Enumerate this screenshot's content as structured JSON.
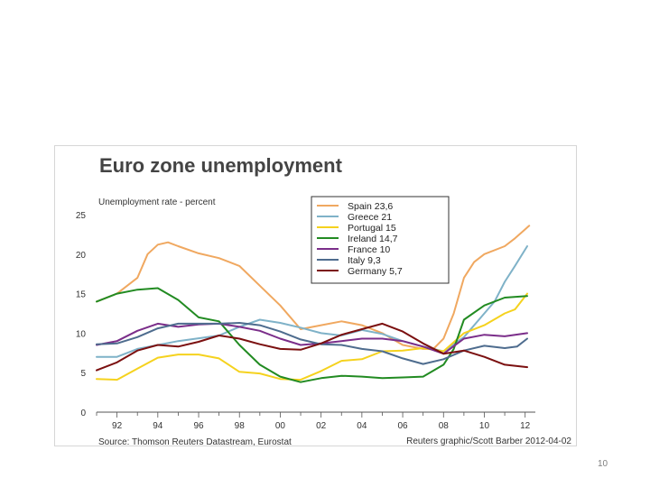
{
  "page_number": "10",
  "chart_data": {
    "type": "line",
    "title": "Euro zone unemployment",
    "ylabel": "Unemployment rate - percent",
    "xlabel": "",
    "source": "Source: Thomson Reuters Datastream, Eurostat",
    "credit": "Reuters graphic/Scott Barber 2012-04-02",
    "xlim": [
      1991,
      2012.5
    ],
    "ylim": [
      0,
      25
    ],
    "x_ticks": [
      1992,
      1994,
      1996,
      1998,
      2000,
      2002,
      2004,
      2006,
      2008,
      2010,
      2012
    ],
    "x_tick_labels": [
      "92",
      "94",
      "96",
      "98",
      "00",
      "02",
      "04",
      "06",
      "08",
      "10",
      "12"
    ],
    "y_ticks": [
      0,
      5,
      10,
      15,
      20,
      25
    ],
    "y_tick_labels": [
      "0",
      "5",
      "10",
      "15",
      "20",
      "25"
    ],
    "grid": false,
    "legend_position": "top-right",
    "series": [
      {
        "name": "Spain",
        "last": "23,6",
        "color": "#f0a860",
        "x": [
          1991,
          1992,
          1993,
          1993.5,
          1994,
          1994.5,
          1995,
          1996,
          1997,
          1998,
          1999,
          2000,
          2001,
          2002,
          2003,
          2004,
          2005,
          2006,
          2007,
          2007.5,
          2008,
          2008.5,
          2009,
          2009.5,
          2010,
          2011,
          2011.5,
          2012.2
        ],
        "y": [
          14,
          15,
          17,
          20,
          21.2,
          21.5,
          21,
          20.1,
          19.5,
          18.5,
          16,
          13.5,
          10.5,
          11,
          11.5,
          11,
          10,
          8.5,
          8,
          8,
          9.3,
          12.5,
          17,
          19,
          20,
          21,
          22,
          23.6
        ]
      },
      {
        "name": "Greece",
        "last": "21",
        "color": "#7fb2c8",
        "x": [
          1991,
          1992,
          1993,
          1995,
          1997,
          1998,
          1999,
          2000,
          2001,
          2002,
          2003,
          2004,
          2005,
          2006,
          2007,
          2008,
          2009,
          2010,
          2010.5,
          2011,
          2011.5,
          2012.1
        ],
        "y": [
          7,
          7,
          8,
          9,
          9.7,
          10.8,
          11.7,
          11.3,
          10.7,
          10,
          9.7,
          10.4,
          9.9,
          9,
          8.3,
          7.7,
          9.5,
          12.5,
          14,
          16.5,
          18.5,
          21
        ]
      },
      {
        "name": "Portugal",
        "last": "15",
        "color": "#f5d21e",
        "x": [
          1991,
          1992,
          1993,
          1994,
          1995,
          1996,
          1997,
          1998,
          1999,
          2000,
          2001,
          2002,
          2003,
          2004,
          2005,
          2006,
          2007,
          2008,
          2009,
          2010,
          2011,
          2011.5,
          2012.1
        ],
        "y": [
          4.2,
          4.1,
          5.5,
          6.9,
          7.3,
          7.3,
          6.8,
          5.1,
          4.9,
          4.2,
          4.1,
          5.2,
          6.5,
          6.7,
          7.7,
          7.8,
          8.1,
          7.7,
          10,
          11,
          12.5,
          13,
          15
        ]
      },
      {
        "name": "Ireland",
        "last": "14,7",
        "color": "#228b22",
        "x": [
          1991,
          1992,
          1993,
          1994,
          1995,
          1996,
          1997,
          1998,
          1999,
          2000,
          2001,
          2002,
          2003,
          2004,
          2005,
          2006,
          2007,
          2008,
          2008.5,
          2009,
          2010,
          2011,
          2012.1
        ],
        "y": [
          14,
          15,
          15.5,
          15.7,
          14.2,
          12,
          11.5,
          8.5,
          6,
          4.5,
          3.8,
          4.3,
          4.6,
          4.5,
          4.3,
          4.4,
          4.5,
          6,
          8,
          11.7,
          13.5,
          14.5,
          14.7
        ]
      },
      {
        "name": "France",
        "last": "10",
        "color": "#7b2e8a",
        "x": [
          1991,
          1992,
          1993,
          1994,
          1995,
          1996,
          1997,
          1998,
          1999,
          2000,
          2001,
          2002,
          2003,
          2004,
          2005,
          2006,
          2007,
          2008,
          2009,
          2010,
          2011,
          2012.1
        ],
        "y": [
          8.5,
          9,
          10.3,
          11.2,
          10.8,
          11.1,
          11.2,
          10.8,
          10.3,
          9.3,
          8.5,
          8.7,
          9,
          9.3,
          9.3,
          9,
          8.3,
          7.4,
          9.3,
          9.8,
          9.6,
          10
        ]
      },
      {
        "name": "Italy",
        "last": "9,3",
        "color": "#4e6c8e",
        "x": [
          1991,
          1992,
          1993,
          1994,
          1995,
          1996,
          1997,
          1998,
          1999,
          2000,
          2001,
          2002,
          2003,
          2004,
          2005,
          2006,
          2007,
          2008,
          2009,
          2010,
          2011,
          2011.6,
          2012.1
        ],
        "y": [
          8.6,
          8.7,
          9.5,
          10.6,
          11.2,
          11.2,
          11.2,
          11.3,
          11,
          10.2,
          9.2,
          8.6,
          8.5,
          8,
          7.7,
          6.8,
          6.1,
          6.7,
          7.8,
          8.4,
          8.1,
          8.3,
          9.3
        ]
      },
      {
        "name": "Germany",
        "last": "5,7",
        "color": "#7b1010",
        "x": [
          1991,
          1992,
          1993,
          1994,
          1995,
          1996,
          1997,
          1998,
          1999,
          2000,
          2001,
          2002,
          2003,
          2004,
          2005,
          2006,
          2007,
          2008,
          2009,
          2010,
          2011,
          2012.1
        ],
        "y": [
          5.3,
          6.3,
          7.8,
          8.5,
          8.3,
          8.9,
          9.7,
          9.3,
          8.6,
          8,
          7.9,
          8.7,
          9.8,
          10.5,
          11.2,
          10.2,
          8.7,
          7.4,
          7.8,
          7,
          6,
          5.7
        ]
      }
    ]
  }
}
